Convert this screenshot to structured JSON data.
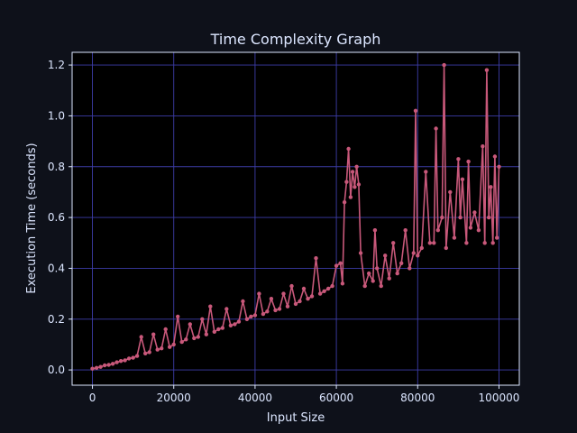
{
  "colors": {
    "figure_background": "#0e111a",
    "plot_background": "#000000",
    "grid": "#3d3da8",
    "series": "#c8587a",
    "text": "#dce6ff"
  },
  "chart_data": {
    "type": "line",
    "title": "Time Complexity Graph",
    "xlabel": "Input Size",
    "ylabel": "Execution Time (seconds)",
    "xlim": [
      -5000,
      105000
    ],
    "ylim": [
      -0.06,
      1.25
    ],
    "x_ticks": [
      0,
      20000,
      40000,
      60000,
      80000,
      100000
    ],
    "x_tick_labels": [
      "0",
      "20000",
      "40000",
      "60000",
      "80000",
      "100000"
    ],
    "y_ticks": [
      0.0,
      0.2,
      0.4,
      0.6,
      0.8,
      1.0,
      1.2
    ],
    "y_tick_labels": [
      "0.0",
      "0.2",
      "0.4",
      "0.6",
      "0.8",
      "1.0",
      "1.2"
    ],
    "grid": true,
    "marker": "circle",
    "series": [
      {
        "name": "Execution Time",
        "x": [
          0,
          1000,
          2000,
          3000,
          4000,
          5000,
          6000,
          7000,
          8000,
          9000,
          10000,
          11000,
          12000,
          13000,
          14000,
          15000,
          16000,
          17000,
          18000,
          19000,
          20000,
          21000,
          22000,
          23000,
          24000,
          25000,
          26000,
          27000,
          28000,
          29000,
          30000,
          31000,
          32000,
          33000,
          34000,
          35000,
          36000,
          37000,
          38000,
          39000,
          40000,
          41000,
          42000,
          43000,
          44000,
          45000,
          46000,
          47000,
          48000,
          49000,
          50000,
          51000,
          52000,
          53000,
          54000,
          55000,
          56000,
          57000,
          58000,
          59000,
          60000,
          61000,
          61500,
          62000,
          62500,
          63000,
          63500,
          64000,
          64500,
          65000,
          65500,
          66000,
          67000,
          68000,
          69000,
          69500,
          70000,
          71000,
          72000,
          73000,
          74000,
          75000,
          76000,
          77000,
          78000,
          79000,
          79500,
          80000,
          81000,
          82000,
          83000,
          84000,
          84500,
          85000,
          86000,
          86500,
          87000,
          88000,
          89000,
          90000,
          90500,
          91000,
          92000,
          92500,
          93000,
          94000,
          95000,
          96000,
          96500,
          97000,
          97500,
          98000,
          98500,
          99000,
          99500,
          100000
        ],
        "y": [
          0.005,
          0.008,
          0.012,
          0.018,
          0.02,
          0.024,
          0.03,
          0.035,
          0.038,
          0.045,
          0.048,
          0.055,
          0.13,
          0.065,
          0.07,
          0.14,
          0.08,
          0.085,
          0.16,
          0.09,
          0.1,
          0.21,
          0.11,
          0.12,
          0.18,
          0.125,
          0.13,
          0.2,
          0.14,
          0.25,
          0.15,
          0.16,
          0.165,
          0.24,
          0.175,
          0.18,
          0.19,
          0.27,
          0.2,
          0.21,
          0.215,
          0.3,
          0.22,
          0.23,
          0.28,
          0.235,
          0.24,
          0.3,
          0.25,
          0.33,
          0.26,
          0.27,
          0.32,
          0.28,
          0.29,
          0.44,
          0.3,
          0.31,
          0.32,
          0.33,
          0.41,
          0.42,
          0.34,
          0.66,
          0.74,
          0.87,
          0.68,
          0.78,
          0.72,
          0.8,
          0.73,
          0.46,
          0.33,
          0.38,
          0.35,
          0.55,
          0.4,
          0.33,
          0.45,
          0.36,
          0.5,
          0.38,
          0.42,
          0.55,
          0.4,
          0.46,
          1.02,
          0.45,
          0.48,
          0.78,
          0.5,
          0.5,
          0.95,
          0.55,
          0.6,
          1.2,
          0.48,
          0.7,
          0.52,
          0.83,
          0.6,
          0.75,
          0.5,
          0.82,
          0.56,
          0.62,
          0.55,
          0.88,
          0.5,
          1.18,
          0.6,
          0.72,
          0.5,
          0.84,
          0.52,
          0.8
        ]
      }
    ]
  }
}
